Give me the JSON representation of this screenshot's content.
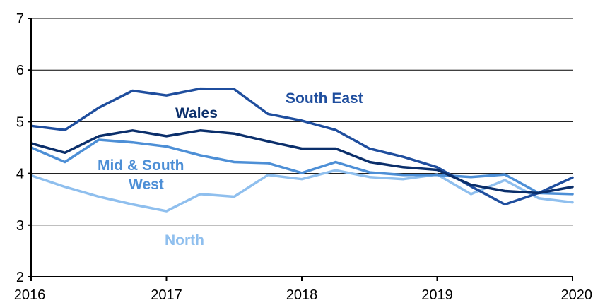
{
  "chart_data": {
    "type": "line",
    "title": "",
    "xlabel": "",
    "ylabel": "",
    "xlim": [
      2016,
      2020
    ],
    "ylim": [
      2,
      7
    ],
    "x_ticks": [
      "2016",
      "2017",
      "2018",
      "2019",
      "2020"
    ],
    "y_ticks": [
      "2",
      "3",
      "4",
      "5",
      "6",
      "7"
    ],
    "grid": "horizontal",
    "legend": "none",
    "x": [
      2016.0,
      2016.25,
      2016.5,
      2016.75,
      2017.0,
      2017.25,
      2017.5,
      2017.75,
      2018.0,
      2018.25,
      2018.5,
      2018.75,
      2019.0,
      2019.25,
      2019.5,
      2019.75,
      2020.0
    ],
    "series": [
      {
        "name": "South East",
        "color": "#1f4e9e",
        "values": [
          4.92,
          4.84,
          5.27,
          5.6,
          5.51,
          5.64,
          5.63,
          5.15,
          5.02,
          4.84,
          4.48,
          4.32,
          4.12,
          3.75,
          3.4,
          3.62,
          3.92
        ]
      },
      {
        "name": "Wales",
        "color": "#0b2f6b",
        "values": [
          4.58,
          4.4,
          4.72,
          4.83,
          4.72,
          4.83,
          4.77,
          4.62,
          4.48,
          4.48,
          4.22,
          4.12,
          4.07,
          3.78,
          3.66,
          3.62,
          3.74
        ]
      },
      {
        "name": "Mid & South West",
        "color": "#4d8fd6",
        "values": [
          4.5,
          4.22,
          4.65,
          4.6,
          4.52,
          4.35,
          4.22,
          4.2,
          4.01,
          4.22,
          4.02,
          3.97,
          3.97,
          3.93,
          3.98,
          3.62,
          3.6
        ]
      },
      {
        "name": "North",
        "color": "#8fbfee",
        "values": [
          3.96,
          3.74,
          3.55,
          3.4,
          3.27,
          3.6,
          3.55,
          3.97,
          3.89,
          4.06,
          3.93,
          3.89,
          3.98,
          3.6,
          3.87,
          3.52,
          3.44
        ]
      }
    ],
    "annotations": [
      {
        "text": "South East",
        "series": "South East"
      },
      {
        "text": "Wales",
        "series": "Wales"
      },
      {
        "text": "Mid & South",
        "series": "Mid & South West"
      },
      {
        "text": "West",
        "series": "Mid & South West"
      },
      {
        "text": "North",
        "series": "North"
      }
    ]
  }
}
